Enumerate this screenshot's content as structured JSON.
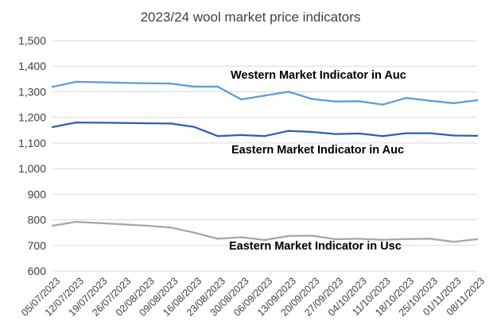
{
  "chart_data": {
    "type": "line",
    "title": "2023/24 wool market price indicators",
    "xlabel": "",
    "ylabel": "",
    "ylim": [
      600,
      1500
    ],
    "yticks": [
      "1,500",
      "1,400",
      "1,300",
      "1,200",
      "1,100",
      "1,000",
      "900",
      "800",
      "700",
      "600"
    ],
    "grid": true,
    "legend": "none",
    "x": [
      "05/07/2023",
      "12/07/2023",
      "19/07/2023",
      "26/07/2023",
      "02/08/2023",
      "09/08/2023",
      "16/08/2023",
      "23/08/2023",
      "30/08/2023",
      "06/09/2023",
      "13/09/2023",
      "20/09/2023",
      "27/09/2023",
      "04/10/2023",
      "11/10/2023",
      "18/10/2023",
      "25/10/2023",
      "01/11/2023",
      "08/11/2023"
    ],
    "series": [
      {
        "name": "Western Market Indicator in Auc",
        "color": "#5b9bd5",
        "values": [
          1319,
          1339,
          1337,
          1335,
          1333,
          1332,
          1320,
          1320,
          1270,
          1285,
          1300,
          1272,
          1262,
          1263,
          1250,
          1276,
          1265,
          1255,
          1267
        ]
      },
      {
        "name": "Eastern Market Indicator in  Auc",
        "color": "#2f5fad",
        "values": [
          1162,
          1180,
          1179,
          1178,
          1177,
          1176,
          1163,
          1127,
          1131,
          1127,
          1147,
          1143,
          1135,
          1137,
          1127,
          1138,
          1138,
          1129,
          1128
        ]
      },
      {
        "name": "Eastern Market Indicator in Usc",
        "color": "#a6a6a6",
        "values": [
          777,
          792,
          787,
          782,
          777,
          770,
          750,
          726,
          732,
          721,
          737,
          738,
          724,
          726,
          722,
          725,
          726,
          714,
          724
        ]
      }
    ],
    "annotations": [
      {
        "text": "Western Market Indicator in Auc",
        "series": 0
      },
      {
        "text": "Eastern Market Indicator in  Auc",
        "series": 1
      },
      {
        "text": "Eastern Market Indicator in Usc",
        "series": 2
      }
    ]
  }
}
